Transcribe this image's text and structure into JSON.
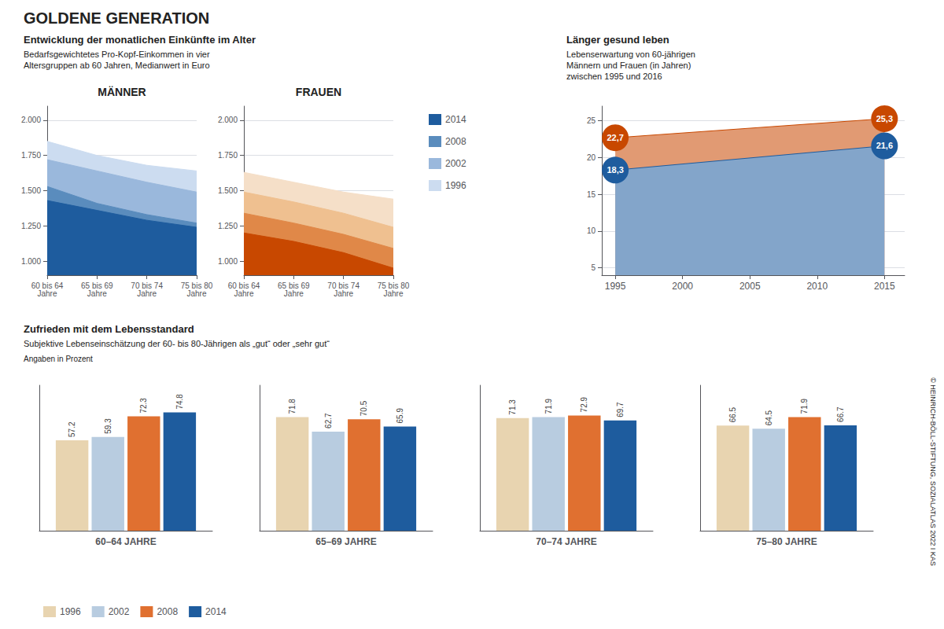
{
  "chart_data": [
    {
      "type": "area",
      "title": "MÄNNER",
      "annotations": [
        "GOLDENE GENERATION",
        "Entwicklung der monatlichen Einkünfte im Alter",
        "Bedarfsgewichtetes Pro-Kopf-Einkommen in vier\nAltersgruppen ab 60 Jahren, Medianwert in Euro"
      ],
      "categories": [
        "60 bis 64\nJahre",
        "65 bis 69\nJahre",
        "70 bis 74\nJahre",
        "75 bis 80\nJahre"
      ],
      "series": [
        {
          "name": "1996",
          "color": "#ccdcf0",
          "values": [
            1850,
            1750,
            1680,
            1640
          ]
        },
        {
          "name": "2002",
          "color": "#9ab8dc",
          "values": [
            1720,
            1640,
            1560,
            1490
          ]
        },
        {
          "name": "2008",
          "color": "#5a8cbd",
          "values": [
            1530,
            1410,
            1330,
            1270
          ]
        },
        {
          "name": "2014",
          "color": "#1e5c9e",
          "values": [
            1430,
            1360,
            1290,
            1240
          ]
        }
      ],
      "ylim": [
        900,
        2100
      ],
      "yticks": [
        {
          "value": 1000,
          "label": "1.000"
        },
        {
          "value": 1250,
          "label": "1.250"
        },
        {
          "value": 1500,
          "label": "1.500"
        },
        {
          "value": 1750,
          "label": "1.750"
        },
        {
          "value": 2000,
          "label": "2.000"
        }
      ],
      "grid": true,
      "legend": "right"
    },
    {
      "type": "area",
      "title": "FRAUEN",
      "categories": [
        "60 bis 64\nJahre",
        "65 bis 69\nJahre",
        "70 bis 74\nJahre",
        "75 bis 80\nJahre"
      ],
      "series": [
        {
          "name": "1996",
          "color": "#f5dfc8",
          "values": [
            1630,
            1560,
            1490,
            1440
          ]
        },
        {
          "name": "2002",
          "color": "#efc090",
          "values": [
            1490,
            1420,
            1340,
            1240
          ]
        },
        {
          "name": "2008",
          "color": "#e08848",
          "values": [
            1340,
            1270,
            1190,
            1090
          ]
        },
        {
          "name": "2014",
          "color": "#c84800",
          "values": [
            1200,
            1140,
            1060,
            950
          ]
        }
      ],
      "ylim": [
        900,
        2100
      ],
      "yticks": [
        {
          "value": 1000,
          "label": "1.000"
        },
        {
          "value": 1250,
          "label": "1.250"
        },
        {
          "value": 1500,
          "label": "1.500"
        },
        {
          "value": 1750,
          "label": "1.750"
        },
        {
          "value": 2000,
          "label": "2.000"
        }
      ],
      "grid": true
    },
    {
      "type": "area",
      "title": "Länger gesund leben",
      "subtitle": "Lebenserwartung von 60-jährigen\nMännern und Frauen (in Jahren)\nzwischen 1995 und 2016",
      "x": [
        1995,
        2015
      ],
      "series": [
        {
          "color": "#1e5c9e",
          "values": [
            18.3,
            21.6
          ],
          "value_labels": [
            "18,3",
            "21,6"
          ]
        },
        {
          "color": "#c84800",
          "values": [
            22.7,
            25.3
          ],
          "value_labels": [
            "22,7",
            "25,3"
          ]
        }
      ],
      "xlim": [
        1994,
        2016.5
      ],
      "xticks": [
        1995,
        2000,
        2005,
        2010,
        2015
      ],
      "ylim": [
        4,
        27
      ],
      "yticks": [
        5,
        10,
        15,
        20,
        25
      ],
      "grid": true,
      "data_labels": true
    },
    {
      "type": "bar",
      "title": "Zufrieden mit dem Lebensstandard",
      "subtitle": "Subjektive Lebenseinschätzung der 60- bis 80-Jährigen als „gut“ oder „sehr gut“",
      "annotations": [
        "Angaben in Prozent"
      ],
      "categories": [
        "60–64 JAHRE"
      ],
      "series": [
        {
          "name": "1996",
          "color": "#e8d4b0",
          "values": [
            57.2
          ]
        },
        {
          "name": "2002",
          "color": "#b8cce0",
          "values": [
            59.3
          ]
        },
        {
          "name": "2008",
          "color": "#e07030",
          "values": [
            72.3
          ]
        },
        {
          "name": "2014",
          "color": "#1e5c9e",
          "values": [
            74.8
          ]
        }
      ],
      "ylim": [
        0,
        92
      ],
      "tick_labels": "x",
      "data_labels": true,
      "legend": "bottom"
    },
    {
      "type": "bar",
      "categories": [
        "65–69 JAHRE"
      ],
      "series": [
        {
          "name": "1996",
          "color": "#e8d4b0",
          "values": [
            71.8
          ]
        },
        {
          "name": "2002",
          "color": "#b8cce0",
          "values": [
            62.7
          ]
        },
        {
          "name": "2008",
          "color": "#e07030",
          "values": [
            70.5
          ]
        },
        {
          "name": "2014",
          "color": "#1e5c9e",
          "values": [
            65.9
          ]
        }
      ],
      "ylim": [
        0,
        92
      ],
      "tick_labels": "x",
      "data_labels": true
    },
    {
      "type": "bar",
      "categories": [
        "70–74 JAHRE"
      ],
      "series": [
        {
          "name": "1996",
          "color": "#e8d4b0",
          "values": [
            71.3
          ]
        },
        {
          "name": "2002",
          "color": "#b8cce0",
          "values": [
            71.9
          ]
        },
        {
          "name": "2008",
          "color": "#e07030",
          "values": [
            72.9
          ]
        },
        {
          "name": "2014",
          "color": "#1e5c9e",
          "values": [
            69.7
          ]
        }
      ],
      "ylim": [
        0,
        92
      ],
      "tick_labels": "x",
      "data_labels": true
    },
    {
      "type": "bar",
      "annotations": [
        "© HEINRICH-BÖLL-STIFTUNG, SOZIALATLAS 2022 I KAS"
      ],
      "categories": [
        "75–80 JAHRE"
      ],
      "series": [
        {
          "name": "1996",
          "color": "#e8d4b0",
          "values": [
            66.5
          ]
        },
        {
          "name": "2002",
          "color": "#b8cce0",
          "values": [
            64.5
          ]
        },
        {
          "name": "2008",
          "color": "#e07030",
          "values": [
            71.9
          ]
        },
        {
          "name": "2014",
          "color": "#1e5c9e",
          "values": [
            66.7
          ]
        }
      ],
      "ylim": [
        0,
        92
      ],
      "tick_labels": "x",
      "data_labels": true
    }
  ]
}
